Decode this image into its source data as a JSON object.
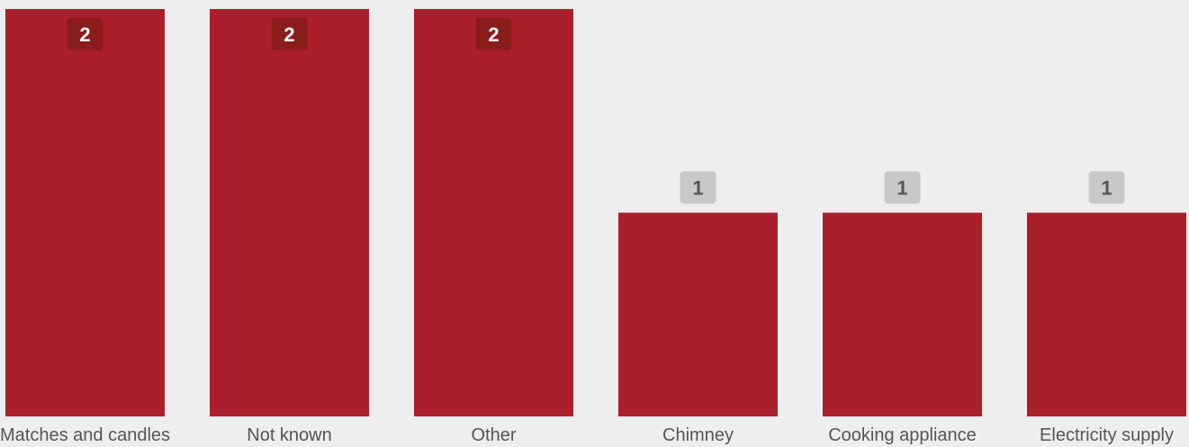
{
  "chart_data": {
    "type": "bar",
    "categories": [
      "Matches and candles",
      "Not known",
      "Other",
      "Chimney",
      "Cooking appliance",
      "Electricity supply"
    ],
    "values": [
      2,
      2,
      2,
      1,
      1,
      1
    ],
    "ylim": [
      0,
      2
    ],
    "grid": false,
    "title": "",
    "xlabel": "",
    "ylabel": ""
  },
  "colors": {
    "background": "#eeeeee",
    "bar": "#ab1f2d",
    "label_inside_bg": "#8b1c1c",
    "label_inside_text": "#ffffff",
    "label_outside_bg": "#c8c8c8",
    "label_outside_text": "#555555",
    "category_text": "#555555"
  }
}
